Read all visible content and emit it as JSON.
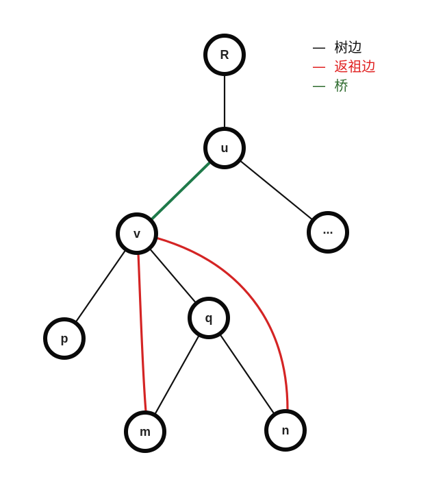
{
  "diagram": {
    "nodes": [
      {
        "id": "R",
        "label": "R"
      },
      {
        "id": "u",
        "label": "u"
      },
      {
        "id": "v",
        "label": "v"
      },
      {
        "id": "dots",
        "label": "..."
      },
      {
        "id": "p",
        "label": "p"
      },
      {
        "id": "q",
        "label": "q"
      },
      {
        "id": "m",
        "label": "m"
      },
      {
        "id": "n",
        "label": "n"
      }
    ],
    "edges": [
      {
        "from": "R",
        "to": "u",
        "kind": "tree"
      },
      {
        "from": "u",
        "to": "v",
        "kind": "bridge"
      },
      {
        "from": "u",
        "to": "dots",
        "kind": "tree"
      },
      {
        "from": "v",
        "to": "p",
        "kind": "tree"
      },
      {
        "from": "v",
        "to": "q",
        "kind": "tree"
      },
      {
        "from": "q",
        "to": "m",
        "kind": "tree"
      },
      {
        "from": "q",
        "to": "n",
        "kind": "tree"
      },
      {
        "from": "m",
        "to": "v",
        "kind": "back"
      },
      {
        "from": "n",
        "to": "v",
        "kind": "back"
      }
    ]
  },
  "legend": {
    "items": [
      {
        "key": "tree",
        "symbol": "—",
        "label": "树边",
        "color": "#111111"
      },
      {
        "key": "back",
        "symbol": "—",
        "label": "返祖边",
        "color": "#e02020"
      },
      {
        "key": "bridge",
        "symbol": "—",
        "label": "桥",
        "color": "#2e6b2e"
      }
    ]
  },
  "colors": {
    "tree": "#111111",
    "back": "#d42424",
    "bridge": "#1f7a4a",
    "node_stroke": "#0a0a0a",
    "node_fill": "#ffffff"
  }
}
